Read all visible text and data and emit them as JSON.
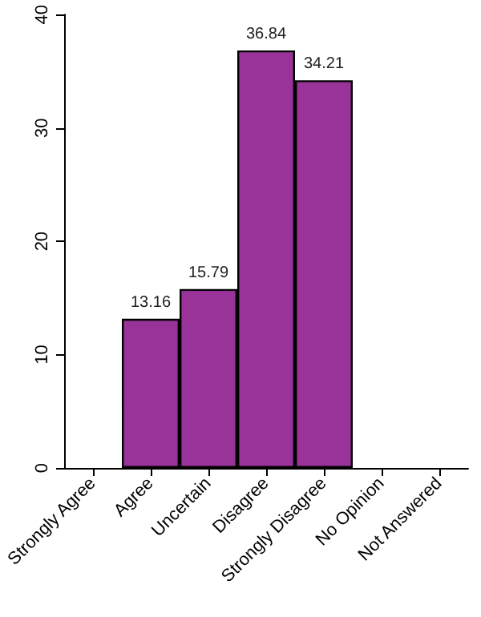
{
  "chart_data": {
    "type": "bar",
    "categories": [
      "Strongly Agree",
      "Agree",
      "Uncertain",
      "Disagree",
      "Strongly Disagree",
      "No Opinion",
      "Not Answered"
    ],
    "values": [
      null,
      13.16,
      15.79,
      36.84,
      34.21,
      null,
      null
    ],
    "color": "#993399",
    "ylim": [
      0,
      40
    ],
    "yticks": [
      0,
      10,
      20,
      30,
      40
    ],
    "grid": false,
    "data_labels": true
  }
}
